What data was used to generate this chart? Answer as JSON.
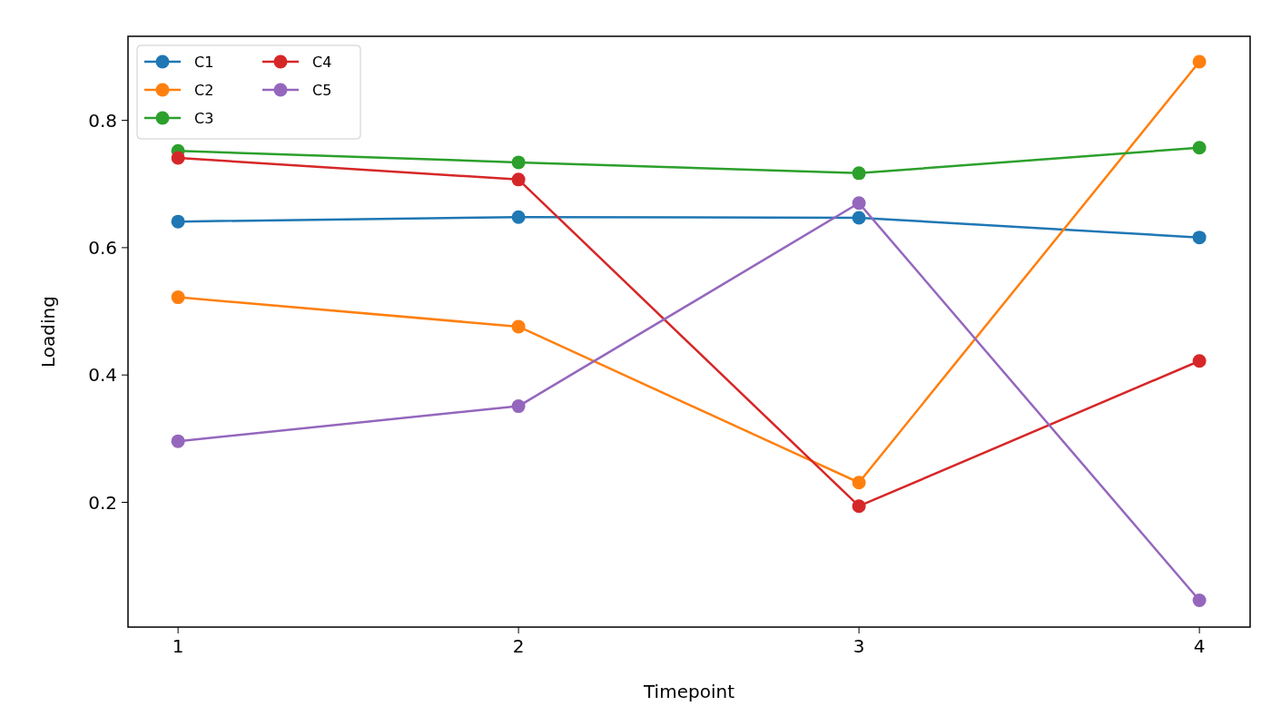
{
  "chart_data": {
    "type": "line",
    "xlabel": "Timepoint",
    "ylabel": "Loading",
    "x": [
      1,
      2,
      3,
      4
    ],
    "xlim": [
      0.853,
      4.149
    ],
    "xticks": [
      1,
      2,
      3,
      4
    ],
    "ylim": [
      0.004,
      0.932
    ],
    "yticks": [
      0.2,
      0.4,
      0.6,
      0.8
    ],
    "series": [
      {
        "name": "C1",
        "color": "#1f77b4",
        "values": [
          0.641,
          0.648,
          0.647,
          0.616
        ]
      },
      {
        "name": "C2",
        "color": "#ff7f0e",
        "values": [
          0.522,
          0.476,
          0.231,
          0.892
        ]
      },
      {
        "name": "C3",
        "color": "#2ca02c",
        "values": [
          0.752,
          0.734,
          0.717,
          0.757
        ]
      },
      {
        "name": "C4",
        "color": "#d62728",
        "values": [
          0.741,
          0.707,
          0.194,
          0.422
        ]
      },
      {
        "name": "C5",
        "color": "#9467bd",
        "values": [
          0.296,
          0.351,
          0.67,
          0.046
        ]
      }
    ],
    "marker": "circle",
    "line_style": "solid",
    "grid": false,
    "legend": "top left"
  }
}
